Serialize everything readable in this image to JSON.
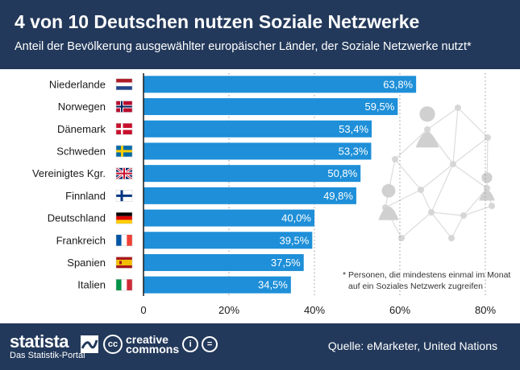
{
  "header": {
    "title": "4 von 10 Deutschen nutzen Soziale Netzwerke",
    "subtitle": "Anteil der Bevölkerung ausgewählter europäischer Länder, der Soziale Netzwerke nutzt*"
  },
  "footnote": {
    "line1": "* Personen, die mindestens einmal im Monat",
    "line2": "auf ein Soziales Netzwerk zugreifen"
  },
  "footer": {
    "brand": "statista",
    "brand_tag": "Das Statistik-Portal",
    "cc_line1": "creative",
    "cc_line2": "commons",
    "source": "Quelle: eMarketer, United Nations"
  },
  "colors": {
    "header_bg": "#23395b",
    "bar": "#1e8fd8",
    "bar_label": "#ffffff"
  },
  "chart_data": {
    "type": "bar",
    "orientation": "horizontal",
    "categories": [
      "Niederlande",
      "Norwegen",
      "Dänemark",
      "Schweden",
      "Vereinigtes Kgr.",
      "Finnland",
      "Deutschland",
      "Frankreich",
      "Spanien",
      "Italien"
    ],
    "values": [
      63.8,
      59.5,
      53.4,
      53.3,
      50.8,
      49.8,
      40.0,
      39.5,
      37.5,
      34.5
    ],
    "value_labels": [
      "63,8%",
      "59,5%",
      "53,4%",
      "53,3%",
      "50,8%",
      "49,8%",
      "40,0%",
      "39,5%",
      "37,5%",
      "34,5%"
    ],
    "flags": [
      "nl",
      "no",
      "dk",
      "se",
      "gb",
      "fi",
      "de",
      "fr",
      "es",
      "it"
    ],
    "xticks": [
      0,
      20,
      40,
      60,
      80
    ],
    "xtick_labels": [
      "0",
      "20%",
      "40%",
      "60%",
      "80%"
    ],
    "xlim": [
      0,
      80
    ],
    "grid": "vertical dotted"
  }
}
